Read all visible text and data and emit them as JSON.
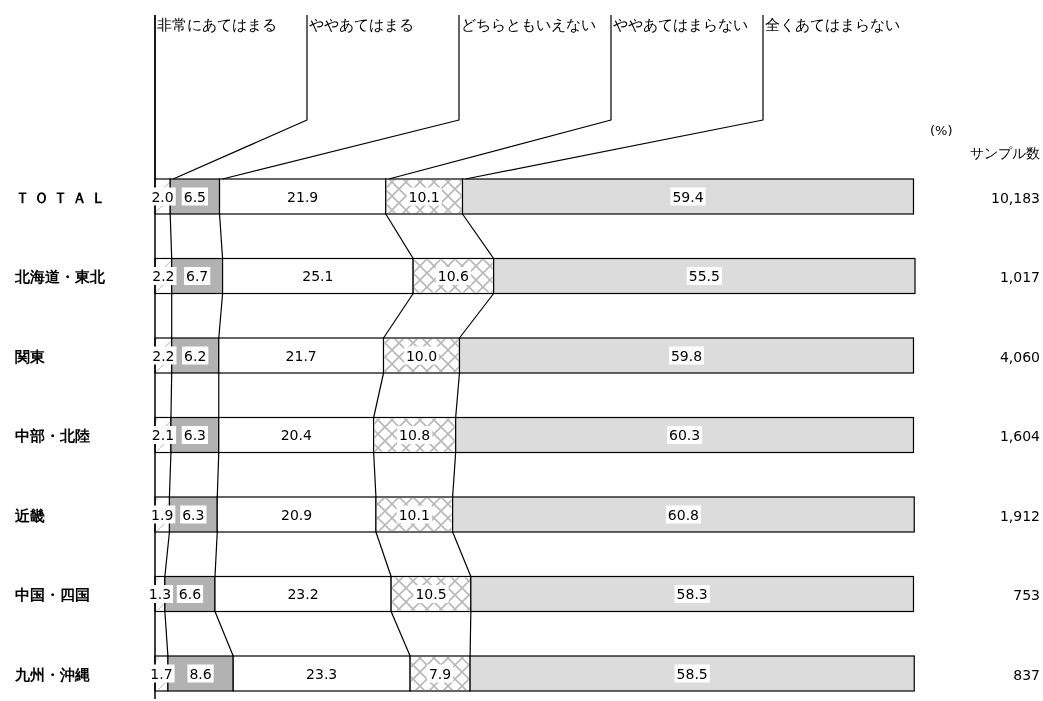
{
  "chart_data": {
    "type": "bar",
    "orientation": "horizontal",
    "stacked": true,
    "legend": "top",
    "categories": [
      "ＴＯＴＡＬ",
      "北海道・東北",
      "関東",
      "中部・北陸",
      "近畿",
      "中国・四国",
      "九州・沖縄"
    ],
    "series": [
      {
        "name": "非常にあてはまる",
        "color": "#ffffff",
        "values": [
          2.0,
          2.2,
          2.2,
          2.1,
          1.9,
          1.3,
          1.7
        ],
        "value_labels": [
          "2.0",
          "2.2",
          "2.2",
          "2.1",
          "1.9",
          "1.3",
          "1.7"
        ]
      },
      {
        "name": "ややあてはまる",
        "color": "#b2b2b2",
        "values": [
          6.5,
          6.7,
          6.2,
          6.3,
          6.3,
          6.6,
          8.6
        ],
        "value_labels": [
          "6.5",
          "6.7",
          "6.2",
          "6.3",
          "6.3",
          "6.6",
          "8.6"
        ]
      },
      {
        "name": "どちらともいえない",
        "color": "#ffffff",
        "values": [
          21.9,
          25.1,
          21.7,
          20.4,
          20.9,
          23.2,
          23.3
        ],
        "value_labels": [
          "21.9",
          "25.1",
          "21.7",
          "20.4",
          "20.9",
          "23.2",
          "23.3"
        ]
      },
      {
        "name": "ややあてはまらない",
        "color": "#ffffff",
        "values": [
          10.1,
          10.6,
          10.0,
          10.8,
          10.1,
          10.5,
          7.9
        ],
        "value_labels": [
          "10.1",
          "10.6",
          "10.0",
          "10.8",
          "10.1",
          "10.5",
          "7.9"
        ]
      },
      {
        "name": "全くあてはまらない",
        "color": "#dcdcdc",
        "values": [
          59.4,
          55.5,
          59.8,
          60.3,
          60.8,
          58.3,
          58.5
        ],
        "value_labels": [
          "59.4",
          "55.5",
          "59.8",
          "60.3",
          "60.8",
          "58.3",
          "58.5"
        ]
      }
    ],
    "annotations": [
      "(%)",
      "サンプル数",
      "10,183",
      "1,017",
      "4,060",
      "1,604",
      "1,912",
      "753",
      "837"
    ]
  }
}
